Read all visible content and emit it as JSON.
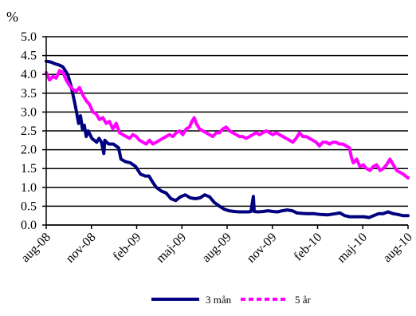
{
  "chart_data": {
    "type": "line",
    "ylabel": "%",
    "ylim": [
      0,
      5
    ],
    "yticks": [
      "0.0",
      "0.5",
      "1.0",
      "1.5",
      "2.0",
      "2.5",
      "3.0",
      "3.5",
      "4.0",
      "4.5",
      "5.0"
    ],
    "x_tick_labels": [
      "aug-08",
      "nov-08",
      "feb-09",
      "maj-09",
      "aug-09",
      "nov-09",
      "feb-10",
      "maj-10",
      "aug-10"
    ],
    "x_range": [
      "2008-08-01",
      "2010-08-31"
    ],
    "grid": "horizontal",
    "legend_position": "bottom",
    "series": [
      {
        "name": "3 mån",
        "color": "#000080",
        "points": [
          [
            "2008-08-01",
            4.35
          ],
          [
            "2008-08-10",
            4.33
          ],
          [
            "2008-08-20",
            4.28
          ],
          [
            "2008-08-28",
            4.25
          ],
          [
            "2008-09-05",
            4.2
          ],
          [
            "2008-09-15",
            4.0
          ],
          [
            "2008-09-22",
            3.7
          ],
          [
            "2008-09-29",
            3.3
          ],
          [
            "2008-10-03",
            3.05
          ],
          [
            "2008-10-08",
            2.7
          ],
          [
            "2008-10-12",
            2.9
          ],
          [
            "2008-10-16",
            2.55
          ],
          [
            "2008-10-20",
            2.65
          ],
          [
            "2008-10-24",
            2.35
          ],
          [
            "2008-10-28",
            2.5
          ],
          [
            "2008-11-01",
            2.4
          ],
          [
            "2008-11-05",
            2.3
          ],
          [
            "2008-11-10",
            2.25
          ],
          [
            "2008-11-15",
            2.2
          ],
          [
            "2008-11-20",
            2.3
          ],
          [
            "2008-11-25",
            2.2
          ],
          [
            "2008-11-30",
            1.9
          ],
          [
            "2008-12-02",
            2.25
          ],
          [
            "2008-12-10",
            2.15
          ],
          [
            "2008-12-20",
            2.15
          ],
          [
            "2008-12-31",
            2.05
          ],
          [
            "2009-01-05",
            1.75
          ],
          [
            "2009-01-15",
            1.68
          ],
          [
            "2009-01-25",
            1.65
          ],
          [
            "2009-02-05",
            1.55
          ],
          [
            "2009-02-15",
            1.35
          ],
          [
            "2009-02-25",
            1.3
          ],
          [
            "2009-03-05",
            1.3
          ],
          [
            "2009-03-12",
            1.15
          ],
          [
            "2009-03-20",
            1.0
          ],
          [
            "2009-03-31",
            0.9
          ],
          [
            "2009-04-10",
            0.85
          ],
          [
            "2009-04-20",
            0.7
          ],
          [
            "2009-04-30",
            0.65
          ],
          [
            "2009-05-10",
            0.75
          ],
          [
            "2009-05-20",
            0.8
          ],
          [
            "2009-05-31",
            0.72
          ],
          [
            "2009-06-10",
            0.7
          ],
          [
            "2009-06-20",
            0.72
          ],
          [
            "2009-06-30",
            0.8
          ],
          [
            "2009-07-10",
            0.75
          ],
          [
            "2009-07-20",
            0.6
          ],
          [
            "2009-07-31",
            0.5
          ],
          [
            "2009-08-10",
            0.42
          ],
          [
            "2009-08-20",
            0.38
          ],
          [
            "2009-08-31",
            0.36
          ],
          [
            "2009-09-10",
            0.35
          ],
          [
            "2009-09-20",
            0.35
          ],
          [
            "2009-09-30",
            0.35
          ],
          [
            "2009-10-05",
            0.36
          ],
          [
            "2009-10-10",
            0.76
          ],
          [
            "2009-10-12",
            0.36
          ],
          [
            "2009-10-20",
            0.35
          ],
          [
            "2009-10-31",
            0.36
          ],
          [
            "2009-11-10",
            0.38
          ],
          [
            "2009-11-20",
            0.36
          ],
          [
            "2009-11-30",
            0.35
          ],
          [
            "2009-12-10",
            0.38
          ],
          [
            "2009-12-20",
            0.4
          ],
          [
            "2009-12-31",
            0.38
          ],
          [
            "2010-01-10",
            0.32
          ],
          [
            "2010-01-20",
            0.31
          ],
          [
            "2010-01-31",
            0.3
          ],
          [
            "2010-02-15",
            0.3
          ],
          [
            "2010-02-28",
            0.28
          ],
          [
            "2010-03-15",
            0.27
          ],
          [
            "2010-03-31",
            0.3
          ],
          [
            "2010-04-10",
            0.32
          ],
          [
            "2010-04-20",
            0.25
          ],
          [
            "2010-04-30",
            0.22
          ],
          [
            "2010-05-15",
            0.22
          ],
          [
            "2010-05-31",
            0.22
          ],
          [
            "2010-06-10",
            0.2
          ],
          [
            "2010-06-20",
            0.25
          ],
          [
            "2010-06-30",
            0.3
          ],
          [
            "2010-07-10",
            0.3
          ],
          [
            "2010-07-20",
            0.35
          ],
          [
            "2010-07-31",
            0.3
          ],
          [
            "2010-08-10",
            0.28
          ],
          [
            "2010-08-20",
            0.25
          ],
          [
            "2010-08-31",
            0.25
          ]
        ]
      },
      {
        "name": "5 år",
        "color": "#ff00ff",
        "points": [
          [
            "2008-08-01",
            4.05
          ],
          [
            "2008-08-08",
            3.85
          ],
          [
            "2008-08-15",
            3.95
          ],
          [
            "2008-08-22",
            3.9
          ],
          [
            "2008-08-29",
            4.1
          ],
          [
            "2008-09-05",
            4.05
          ],
          [
            "2008-09-12",
            3.85
          ],
          [
            "2008-09-19",
            3.7
          ],
          [
            "2008-09-26",
            3.6
          ],
          [
            "2008-10-03",
            3.55
          ],
          [
            "2008-10-10",
            3.65
          ],
          [
            "2008-10-17",
            3.45
          ],
          [
            "2008-10-24",
            3.3
          ],
          [
            "2008-10-31",
            3.2
          ],
          [
            "2008-11-07",
            3.0
          ],
          [
            "2008-11-14",
            2.95
          ],
          [
            "2008-11-21",
            2.8
          ],
          [
            "2008-11-28",
            2.85
          ],
          [
            "2008-12-05",
            2.7
          ],
          [
            "2008-12-12",
            2.75
          ],
          [
            "2008-12-19",
            2.55
          ],
          [
            "2008-12-26",
            2.7
          ],
          [
            "2009-01-02",
            2.45
          ],
          [
            "2009-01-09",
            2.4
          ],
          [
            "2009-01-16",
            2.35
          ],
          [
            "2009-01-23",
            2.3
          ],
          [
            "2009-01-30",
            2.4
          ],
          [
            "2009-02-06",
            2.35
          ],
          [
            "2009-02-13",
            2.25
          ],
          [
            "2009-02-20",
            2.2
          ],
          [
            "2009-02-27",
            2.15
          ],
          [
            "2009-03-06",
            2.25
          ],
          [
            "2009-03-13",
            2.15
          ],
          [
            "2009-03-20",
            2.2
          ],
          [
            "2009-03-27",
            2.25
          ],
          [
            "2009-04-03",
            2.3
          ],
          [
            "2009-04-10",
            2.35
          ],
          [
            "2009-04-17",
            2.4
          ],
          [
            "2009-04-24",
            2.35
          ],
          [
            "2009-05-01",
            2.45
          ],
          [
            "2009-05-08",
            2.5
          ],
          [
            "2009-05-15",
            2.4
          ],
          [
            "2009-05-22",
            2.55
          ],
          [
            "2009-05-29",
            2.6
          ],
          [
            "2009-06-03",
            2.75
          ],
          [
            "2009-06-08",
            2.85
          ],
          [
            "2009-06-12",
            2.7
          ],
          [
            "2009-06-19",
            2.55
          ],
          [
            "2009-06-26",
            2.5
          ],
          [
            "2009-07-03",
            2.45
          ],
          [
            "2009-07-10",
            2.4
          ],
          [
            "2009-07-17",
            2.35
          ],
          [
            "2009-07-24",
            2.45
          ],
          [
            "2009-07-31",
            2.45
          ],
          [
            "2009-08-07",
            2.55
          ],
          [
            "2009-08-14",
            2.6
          ],
          [
            "2009-08-21",
            2.5
          ],
          [
            "2009-08-28",
            2.45
          ],
          [
            "2009-09-04",
            2.4
          ],
          [
            "2009-09-11",
            2.35
          ],
          [
            "2009-09-18",
            2.35
          ],
          [
            "2009-09-25",
            2.3
          ],
          [
            "2009-10-02",
            2.35
          ],
          [
            "2009-10-09",
            2.4
          ],
          [
            "2009-10-16",
            2.45
          ],
          [
            "2009-10-23",
            2.4
          ],
          [
            "2009-10-30",
            2.45
          ],
          [
            "2009-11-06",
            2.5
          ],
          [
            "2009-11-13",
            2.45
          ],
          [
            "2009-11-20",
            2.4
          ],
          [
            "2009-11-27",
            2.45
          ],
          [
            "2009-12-04",
            2.4
          ],
          [
            "2009-12-11",
            2.35
          ],
          [
            "2009-12-18",
            2.3
          ],
          [
            "2009-12-25",
            2.25
          ],
          [
            "2010-01-01",
            2.2
          ],
          [
            "2010-01-08",
            2.3
          ],
          [
            "2010-01-15",
            2.45
          ],
          [
            "2010-01-22",
            2.35
          ],
          [
            "2010-01-29",
            2.35
          ],
          [
            "2010-02-05",
            2.3
          ],
          [
            "2010-02-12",
            2.25
          ],
          [
            "2010-02-19",
            2.2
          ],
          [
            "2010-02-26",
            2.1
          ],
          [
            "2010-03-05",
            2.2
          ],
          [
            "2010-03-12",
            2.2
          ],
          [
            "2010-03-19",
            2.15
          ],
          [
            "2010-03-26",
            2.2
          ],
          [
            "2010-04-02",
            2.2
          ],
          [
            "2010-04-09",
            2.15
          ],
          [
            "2010-04-16",
            2.15
          ],
          [
            "2010-04-23",
            2.1
          ],
          [
            "2010-04-30",
            2.05
          ],
          [
            "2010-05-04",
            1.8
          ],
          [
            "2010-05-08",
            1.65
          ],
          [
            "2010-05-15",
            1.75
          ],
          [
            "2010-05-22",
            1.55
          ],
          [
            "2010-05-29",
            1.6
          ],
          [
            "2010-06-05",
            1.5
          ],
          [
            "2010-06-12",
            1.45
          ],
          [
            "2010-06-19",
            1.55
          ],
          [
            "2010-06-26",
            1.6
          ],
          [
            "2010-07-03",
            1.45
          ],
          [
            "2010-07-10",
            1.5
          ],
          [
            "2010-07-17",
            1.6
          ],
          [
            "2010-07-24",
            1.75
          ],
          [
            "2010-07-31",
            1.6
          ],
          [
            "2010-08-07",
            1.45
          ],
          [
            "2010-08-14",
            1.4
          ],
          [
            "2010-08-21",
            1.35
          ],
          [
            "2010-08-31",
            1.25
          ]
        ]
      }
    ]
  }
}
